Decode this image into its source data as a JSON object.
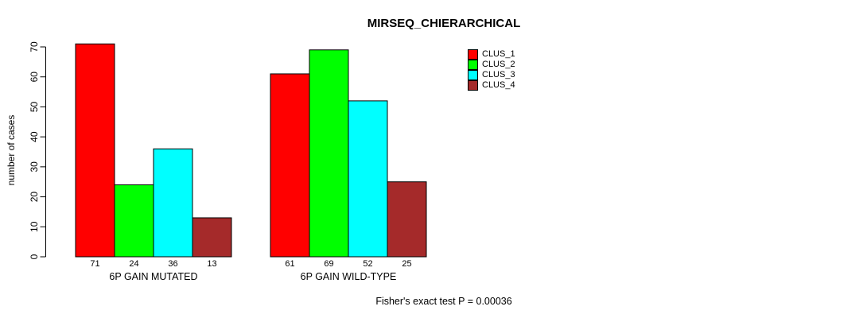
{
  "chart_data": {
    "type": "bar",
    "title": "MIRSEQ_CHIERARCHICAL",
    "xlabel": "",
    "ylabel": "number of cases",
    "categories": [
      "6P GAIN MUTATED",
      "6P GAIN WILD-TYPE"
    ],
    "series": [
      {
        "name": "CLUS_1",
        "color": "#FF0000",
        "values": [
          71,
          61
        ]
      },
      {
        "name": "CLUS_2",
        "color": "#00FF00",
        "values": [
          24,
          69
        ]
      },
      {
        "name": "CLUS_3",
        "color": "#00FFFF",
        "values": [
          36,
          52
        ]
      },
      {
        "name": "CLUS_4",
        "color": "#A52A2A",
        "values": [
          13,
          25
        ]
      }
    ],
    "yticks": [
      0,
      10,
      20,
      30,
      40,
      50,
      60,
      70
    ],
    "ylim": [
      0,
      70
    ],
    "grid": false,
    "bar_value_labels_shown": true,
    "legend_position": "top-right",
    "annotation": "Fisher's exact test P = 0.00036",
    "axis_color": "#000000",
    "bar_border_color": "#000000"
  }
}
